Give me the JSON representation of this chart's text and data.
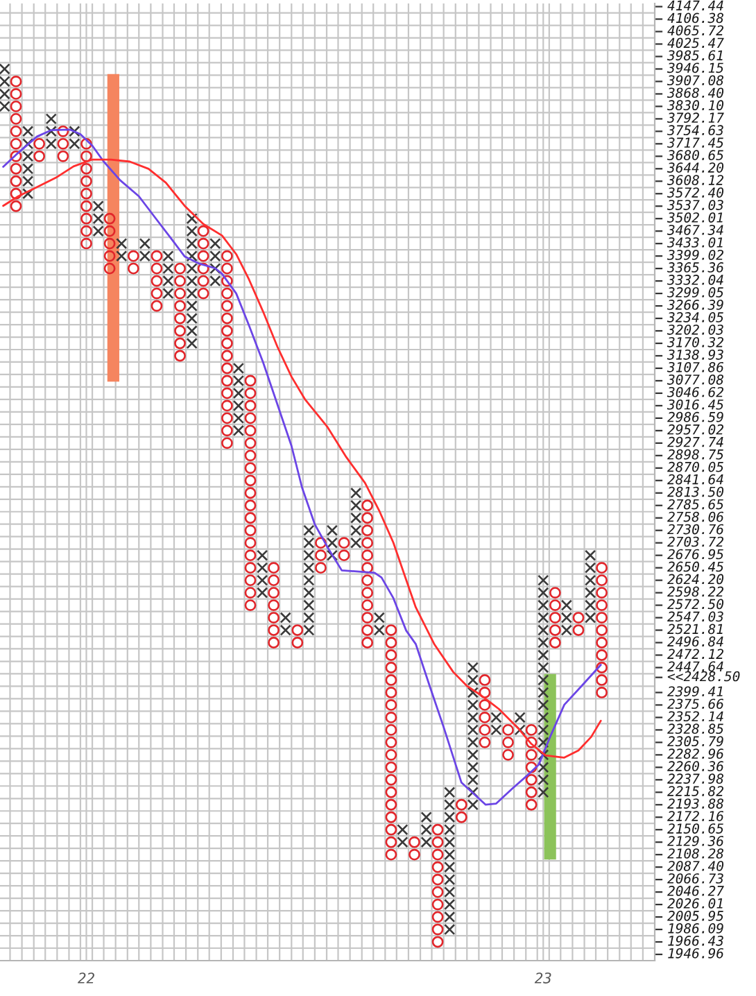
{
  "chart_data": {
    "type": "scatter",
    "log": "y",
    "grid": true,
    "xlim": [
      21.811,
      23.244
    ],
    "xticks": [
      {
        "value": 22,
        "label": "22"
      },
      {
        "value": 23,
        "label": "23"
      },
      {
        "value": 21.833,
        "label": null
      },
      {
        "value": 21.859,
        "label": null
      },
      {
        "value": 21.885,
        "label": null
      },
      {
        "value": 21.91,
        "label": null
      },
      {
        "value": 21.936,
        "label": null
      },
      {
        "value": 21.962,
        "label": null
      },
      {
        "value": 21.987,
        "label": null
      },
      {
        "value": 22.013,
        "label": null
      },
      {
        "value": 22.038,
        "label": null
      },
      {
        "value": 22.064,
        "label": null
      },
      {
        "value": 22.09,
        "label": null
      },
      {
        "value": 22.115,
        "label": null
      },
      {
        "value": 22.141,
        "label": null
      },
      {
        "value": 22.167,
        "label": null
      },
      {
        "value": 22.192,
        "label": null
      },
      {
        "value": 22.218,
        "label": null
      },
      {
        "value": 22.244,
        "label": null
      },
      {
        "value": 22.269,
        "label": null
      },
      {
        "value": 22.295,
        "label": null
      },
      {
        "value": 22.321,
        "label": null
      },
      {
        "value": 22.346,
        "label": null
      },
      {
        "value": 22.372,
        "label": null
      },
      {
        "value": 22.397,
        "label": null
      },
      {
        "value": 22.423,
        "label": null
      },
      {
        "value": 22.449,
        "label": null
      },
      {
        "value": 22.474,
        "label": null
      },
      {
        "value": 22.5,
        "label": null
      },
      {
        "value": 22.526,
        "label": null
      },
      {
        "value": 22.551,
        "label": null
      },
      {
        "value": 22.577,
        "label": null
      },
      {
        "value": 22.603,
        "label": null
      },
      {
        "value": 22.628,
        "label": null
      },
      {
        "value": 22.654,
        "label": null
      },
      {
        "value": 22.679,
        "label": null
      },
      {
        "value": 22.705,
        "label": null
      },
      {
        "value": 22.731,
        "label": null
      },
      {
        "value": 22.756,
        "label": null
      },
      {
        "value": 22.782,
        "label": null
      },
      {
        "value": 22.808,
        "label": null
      },
      {
        "value": 22.833,
        "label": null
      },
      {
        "value": 22.859,
        "label": null
      },
      {
        "value": 22.885,
        "label": null
      },
      {
        "value": 22.91,
        "label": null
      },
      {
        "value": 22.936,
        "label": null
      },
      {
        "value": 22.962,
        "label": null
      },
      {
        "value": 22.987,
        "label": null
      },
      {
        "value": 23.013,
        "label": null
      },
      {
        "value": 23.038,
        "label": null
      },
      {
        "value": 23.064,
        "label": null
      },
      {
        "value": 23.09,
        "label": null
      },
      {
        "value": 23.115,
        "label": null
      },
      {
        "value": 23.141,
        "label": null
      },
      {
        "value": 23.167,
        "label": null
      },
      {
        "value": 23.192,
        "label": null
      },
      {
        "value": 23.218,
        "label": null
      }
    ],
    "ylim": [
      1937.3,
      4157.9
    ],
    "yticks": [
      {
        "value": 4147.44,
        "label": "4147.44"
      },
      {
        "value": 4106.38,
        "label": "4106.38"
      },
      {
        "value": 4065.72,
        "label": "4065.72"
      },
      {
        "value": 4025.47,
        "label": "4025.47"
      },
      {
        "value": 3985.61,
        "label": "3985.61"
      },
      {
        "value": 3946.15,
        "label": "3946.15"
      },
      {
        "value": 3907.08,
        "label": "3907.08"
      },
      {
        "value": 3868.4,
        "label": "3868.40"
      },
      {
        "value": 3830.1,
        "label": "3830.10"
      },
      {
        "value": 3792.17,
        "label": "3792.17"
      },
      {
        "value": 3754.63,
        "label": "3754.63"
      },
      {
        "value": 3717.45,
        "label": "3717.45"
      },
      {
        "value": 3680.65,
        "label": "3680.65"
      },
      {
        "value": 3644.2,
        "label": "3644.20"
      },
      {
        "value": 3608.12,
        "label": "3608.12"
      },
      {
        "value": 3572.4,
        "label": "3572.40"
      },
      {
        "value": 3537.03,
        "label": "3537.03"
      },
      {
        "value": 3502.01,
        "label": "3502.01"
      },
      {
        "value": 3467.34,
        "label": "3467.34"
      },
      {
        "value": 3433.01,
        "label": "3433.01"
      },
      {
        "value": 3399.02,
        "label": "3399.02"
      },
      {
        "value": 3365.36,
        "label": "3365.36"
      },
      {
        "value": 3332.04,
        "label": "3332.04"
      },
      {
        "value": 3299.05,
        "label": "3299.05"
      },
      {
        "value": 3266.39,
        "label": "3266.39"
      },
      {
        "value": 3234.05,
        "label": "3234.05"
      },
      {
        "value": 3202.03,
        "label": "3202.03"
      },
      {
        "value": 3170.32,
        "label": "3170.32"
      },
      {
        "value": 3138.93,
        "label": "3138.93"
      },
      {
        "value": 3107.86,
        "label": "3107.86"
      },
      {
        "value": 3077.08,
        "label": "3077.08"
      },
      {
        "value": 3046.62,
        "label": "3046.62"
      },
      {
        "value": 3016.45,
        "label": "3016.45"
      },
      {
        "value": 2986.59,
        "label": "2986.59"
      },
      {
        "value": 2957.02,
        "label": "2957.02"
      },
      {
        "value": 2927.74,
        "label": "2927.74"
      },
      {
        "value": 2898.75,
        "label": "2898.75"
      },
      {
        "value": 2870.05,
        "label": "2870.05"
      },
      {
        "value": 2841.64,
        "label": "2841.64"
      },
      {
        "value": 2813.5,
        "label": "2813.50"
      },
      {
        "value": 2785.65,
        "label": "2785.65"
      },
      {
        "value": 2758.06,
        "label": "2758.06"
      },
      {
        "value": 2730.76,
        "label": "2730.76"
      },
      {
        "value": 2703.72,
        "label": "2703.72"
      },
      {
        "value": 2676.95,
        "label": "2676.95"
      },
      {
        "value": 2650.45,
        "label": "2650.45"
      },
      {
        "value": 2624.2,
        "label": "2624.20"
      },
      {
        "value": 2598.22,
        "label": "2598.22"
      },
      {
        "value": 2572.5,
        "label": "2572.50"
      },
      {
        "value": 2547.03,
        "label": "2547.03"
      },
      {
        "value": 2521.81,
        "label": "2521.81"
      },
      {
        "value": 2496.84,
        "label": "2496.84"
      },
      {
        "value": 2472.12,
        "label": "2472.12"
      },
      {
        "value": 2447.64,
        "label": "2447.64"
      },
      {
        "value": 2428.5,
        "label": "<<2428.50"
      },
      {
        "value": 2399.41,
        "label": "2399.41"
      },
      {
        "value": 2375.66,
        "label": "2375.66"
      },
      {
        "value": 2352.14,
        "label": "2352.14"
      },
      {
        "value": 2328.85,
        "label": "2328.85"
      },
      {
        "value": 2305.79,
        "label": "2305.79"
      },
      {
        "value": 2282.96,
        "label": "2282.96"
      },
      {
        "value": 2260.36,
        "label": "2260.36"
      },
      {
        "value": 2237.98,
        "label": "2237.98"
      },
      {
        "value": 2215.82,
        "label": "2215.82"
      },
      {
        "value": 2193.88,
        "label": "2193.88"
      },
      {
        "value": 2172.16,
        "label": "2172.16"
      },
      {
        "value": 2150.65,
        "label": "2150.65"
      },
      {
        "value": 2129.36,
        "label": "2129.36"
      },
      {
        "value": 2108.28,
        "label": "2108.28"
      },
      {
        "value": 2087.4,
        "label": "2087.40"
      },
      {
        "value": 2066.73,
        "label": "2066.73"
      },
      {
        "value": 2046.27,
        "label": "2046.27"
      },
      {
        "value": 2026.01,
        "label": "2026.01"
      },
      {
        "value": 2005.95,
        "label": "2005.95"
      },
      {
        "value": 1986.09,
        "label": "1986.09"
      },
      {
        "value": 1966.43,
        "label": "1966.43"
      },
      {
        "value": 1946.96,
        "label": "1946.96"
      },
      {
        "value": 4126.9,
        "label": null
      },
      {
        "value": 4086.0,
        "label": null
      },
      {
        "value": 4045.5,
        "label": null
      },
      {
        "value": 4005.5,
        "label": null
      },
      {
        "value": 3965.8,
        "label": null
      },
      {
        "value": 3926.6,
        "label": null
      },
      {
        "value": 3887.7,
        "label": null
      },
      {
        "value": 3849.2,
        "label": null
      },
      {
        "value": 3811.1,
        "label": null
      },
      {
        "value": 3773.4,
        "label": null
      },
      {
        "value": 3736.0,
        "label": null
      },
      {
        "value": 3699.0,
        "label": null
      },
      {
        "value": 3662.4,
        "label": null
      },
      {
        "value": 3626.1,
        "label": null
      },
      {
        "value": 3590.2,
        "label": null
      },
      {
        "value": 3554.7,
        "label": null
      },
      {
        "value": 3519.5,
        "label": null
      },
      {
        "value": 3484.6,
        "label": null
      },
      {
        "value": 3450.1,
        "label": null
      },
      {
        "value": 3416.0,
        "label": null
      },
      {
        "value": 3382.1,
        "label": null
      },
      {
        "value": 3348.7,
        "label": null
      },
      {
        "value": 3315.5,
        "label": null
      },
      {
        "value": 3282.7,
        "label": null
      },
      {
        "value": 3250.2,
        "label": null
      },
      {
        "value": 3218.0,
        "label": null
      },
      {
        "value": 3186.1,
        "label": null
      },
      {
        "value": 3154.6,
        "label": null
      },
      {
        "value": 3123.4,
        "label": null
      },
      {
        "value": 3092.4,
        "label": null
      },
      {
        "value": 3061.8,
        "label": null
      },
      {
        "value": 3031.5,
        "label": null
      },
      {
        "value": 3001.5,
        "label": null
      },
      {
        "value": 2971.8,
        "label": null
      },
      {
        "value": 2942.3,
        "label": null
      },
      {
        "value": 2913.2,
        "label": null
      },
      {
        "value": 2884.4,
        "label": null
      },
      {
        "value": 2855.8,
        "label": null
      },
      {
        "value": 2827.5,
        "label": null
      },
      {
        "value": 2799.5,
        "label": null
      },
      {
        "value": 2771.8,
        "label": null
      },
      {
        "value": 2744.4,
        "label": null
      },
      {
        "value": 2717.2,
        "label": null
      },
      {
        "value": 2690.3,
        "label": null
      },
      {
        "value": 2663.7,
        "label": null
      },
      {
        "value": 2637.3,
        "label": null
      },
      {
        "value": 2611.2,
        "label": null
      },
      {
        "value": 2585.3,
        "label": null
      },
      {
        "value": 2559.7,
        "label": null
      },
      {
        "value": 2534.4,
        "label": null
      },
      {
        "value": 2509.3,
        "label": null
      },
      {
        "value": 2484.5,
        "label": null
      },
      {
        "value": 2459.8,
        "label": null
      },
      {
        "value": 2435.5,
        "label": null
      },
      {
        "value": 2411.4,
        "label": null
      },
      {
        "value": 2387.5,
        "label": null
      },
      {
        "value": 2363.9,
        "label": null
      },
      {
        "value": 2340.5,
        "label": null
      },
      {
        "value": 2317.3,
        "label": null
      },
      {
        "value": 2294.3,
        "label": null
      },
      {
        "value": 2271.6,
        "label": null
      },
      {
        "value": 2249.1,
        "label": null
      },
      {
        "value": 2226.9,
        "label": null
      },
      {
        "value": 2204.8,
        "label": null
      },
      {
        "value": 2183.0,
        "label": null
      },
      {
        "value": 2161.4,
        "label": null
      },
      {
        "value": 2140.0,
        "label": null
      },
      {
        "value": 2118.8,
        "label": null
      },
      {
        "value": 2097.8,
        "label": null
      },
      {
        "value": 2077.0,
        "label": null
      },
      {
        "value": 2056.5,
        "label": null
      },
      {
        "value": 2036.1,
        "label": null
      },
      {
        "value": 2016.0,
        "label": null
      },
      {
        "value": 1996.0,
        "label": null
      },
      {
        "value": 1976.2,
        "label": null
      },
      {
        "value": 1956.7,
        "label": null
      }
    ],
    "series": [
      {
        "type": "bar",
        "colors": [
          "#f5855f",
          "#8cc35a"
        ],
        "x": [
          22.059,
          23.015
        ],
        "values": [
          855,
          335
        ],
        "base": [
          3075,
          2100
        ]
      },
      {
        "marker": "cross",
        "color": "#3a3a3a",
        "x": [
          21.821,
          21.821,
          21.821,
          21.821,
          21.872,
          21.872,
          21.872,
          21.872,
          21.872,
          21.872,
          21.923,
          21.923,
          21.923,
          21.974,
          21.974,
          22.026,
          22.026,
          22.026,
          22.077,
          22.077,
          22.128,
          22.128,
          22.179,
          22.179,
          22.179,
          22.179,
          22.231,
          22.231,
          22.231,
          22.231,
          22.231,
          22.231,
          22.231,
          22.231,
          22.231,
          22.231,
          22.231,
          22.282,
          22.282,
          22.282,
          22.282,
          22.333,
          22.333,
          22.333,
          22.333,
          22.333,
          22.333,
          22.385,
          22.385,
          22.385,
          22.385,
          22.436,
          22.436,
          22.487,
          22.487,
          22.487,
          22.487,
          22.487,
          22.487,
          22.487,
          22.487,
          22.487,
          22.538,
          22.538,
          22.538,
          22.59,
          22.59,
          22.59,
          22.59,
          22.59,
          22.641,
          22.641,
          22.692,
          22.692,
          22.744,
          22.744,
          22.744,
          22.795,
          22.795,
          22.795,
          22.795,
          22.795,
          22.795,
          22.795,
          22.795,
          22.795,
          22.795,
          22.795,
          22.795,
          22.846,
          22.846,
          22.846,
          22.846,
          22.846,
          22.846,
          22.846,
          22.846,
          22.846,
          22.846,
          22.846,
          22.846,
          22.897,
          22.897,
          22.949,
          22.949,
          23.0,
          23.0,
          23.0,
          23.0,
          23.0,
          23.0,
          23.0,
          23.0,
          23.0,
          23.0,
          23.0,
          23.0,
          23.0,
          23.0,
          23.0,
          23.0,
          23.0,
          23.0,
          23.051,
          23.051,
          23.051,
          23.103,
          23.103,
          23.103,
          23.103,
          23.103,
          23.103
        ],
        "values": [
          3946.15,
          3907.08,
          3868.4,
          3830.1,
          3754.63,
          3717.45,
          3680.65,
          3644.2,
          3608.12,
          3572.4,
          3792.17,
          3754.63,
          3717.45,
          3754.63,
          3717.45,
          3537.03,
          3502.01,
          3467.34,
          3433.01,
          3399.02,
          3433.01,
          3399.02,
          3399.02,
          3365.36,
          3332.04,
          3299.05,
          3502.01,
          3467.34,
          3433.01,
          3399.02,
          3365.36,
          3332.04,
          3299.05,
          3266.39,
          3234.05,
          3202.03,
          3170.32,
          3433.01,
          3399.02,
          3365.36,
          3332.04,
          3107.86,
          3077.08,
          3046.62,
          3016.45,
          2986.59,
          2957.02,
          2676.95,
          2650.45,
          2624.2,
          2598.22,
          2547.03,
          2521.81,
          2730.76,
          2703.72,
          2676.95,
          2650.45,
          2624.2,
          2598.22,
          2572.5,
          2547.03,
          2521.81,
          2730.76,
          2703.72,
          2676.95,
          2813.5,
          2785.65,
          2758.06,
          2730.76,
          2703.72,
          2547.03,
          2521.81,
          2150.65,
          2129.36,
          2172.16,
          2150.65,
          2129.36,
          2215.82,
          2193.88,
          2172.16,
          2150.65,
          2129.36,
          2108.28,
          2087.4,
          2066.73,
          2046.27,
          2026.01,
          2005.95,
          1986.09,
          2447.64,
          2423.41,
          2399.41,
          2375.66,
          2352.14,
          2328.85,
          2305.79,
          2282.96,
          2260.36,
          2237.98,
          2215.82,
          2193.88,
          2352.14,
          2328.85,
          2352.14,
          2328.85,
          2624.2,
          2598.22,
          2572.5,
          2547.03,
          2521.81,
          2496.84,
          2472.12,
          2447.64,
          2423.41,
          2399.41,
          2375.66,
          2352.14,
          2328.85,
          2305.79,
          2282.96,
          2260.36,
          2237.98,
          2215.82,
          2572.5,
          2547.03,
          2521.81,
          2676.95,
          2650.45,
          2624.2,
          2598.22,
          2572.5,
          2547.03
        ]
      },
      {
        "marker": "circle",
        "color": "#e2262b",
        "x": [
          21.846,
          21.846,
          21.846,
          21.846,
          21.846,
          21.846,
          21.846,
          21.846,
          21.846,
          21.846,
          21.846,
          21.897,
          21.897,
          21.949,
          21.949,
          21.949,
          22.0,
          22.0,
          22.0,
          22.0,
          22.0,
          22.0,
          22.0,
          22.0,
          22.0,
          22.051,
          22.051,
          22.051,
          22.051,
          22.051,
          22.103,
          22.103,
          22.154,
          22.154,
          22.154,
          22.154,
          22.154,
          22.205,
          22.205,
          22.205,
          22.205,
          22.205,
          22.205,
          22.205,
          22.205,
          22.256,
          22.256,
          22.256,
          22.256,
          22.256,
          22.256,
          22.308,
          22.308,
          22.308,
          22.308,
          22.308,
          22.308,
          22.308,
          22.308,
          22.308,
          22.308,
          22.308,
          22.308,
          22.308,
          22.308,
          22.308,
          22.308,
          22.359,
          22.359,
          22.359,
          22.359,
          22.359,
          22.359,
          22.359,
          22.359,
          22.359,
          22.359,
          22.359,
          22.359,
          22.359,
          22.359,
          22.359,
          22.359,
          22.359,
          22.359,
          22.359,
          22.41,
          22.41,
          22.41,
          22.41,
          22.41,
          22.41,
          22.41,
          22.462,
          22.462,
          22.513,
          22.513,
          22.513,
          22.564,
          22.564,
          22.615,
          22.615,
          22.615,
          22.615,
          22.615,
          22.615,
          22.615,
          22.615,
          22.615,
          22.615,
          22.615,
          22.615,
          22.667,
          22.667,
          22.667,
          22.667,
          22.667,
          22.667,
          22.667,
          22.667,
          22.667,
          22.667,
          22.667,
          22.667,
          22.667,
          22.667,
          22.667,
          22.667,
          22.667,
          22.667,
          22.667,
          22.718,
          22.718,
          22.769,
          22.769,
          22.769,
          22.769,
          22.769,
          22.769,
          22.769,
          22.769,
          22.769,
          22.769,
          22.821,
          22.821,
          22.872,
          22.872,
          22.872,
          22.872,
          22.872,
          22.872,
          22.923,
          22.923,
          22.923,
          22.974,
          22.974,
          22.974,
          22.974,
          22.974,
          22.974,
          22.974,
          23.026,
          23.026,
          23.026,
          23.026,
          23.026,
          23.077,
          23.077,
          23.128,
          23.128,
          23.128,
          23.128,
          23.128,
          23.128,
          23.128,
          23.128,
          23.128,
          23.128,
          23.128
        ],
        "values": [
          3907.08,
          3868.4,
          3830.1,
          3792.17,
          3754.63,
          3717.45,
          3680.65,
          3644.2,
          3608.12,
          3572.4,
          3537.03,
          3717.45,
          3680.65,
          3754.63,
          3717.45,
          3680.65,
          3717.45,
          3680.65,
          3644.2,
          3608.12,
          3572.4,
          3537.03,
          3502.01,
          3467.34,
          3433.01,
          3502.01,
          3467.34,
          3433.01,
          3399.02,
          3365.36,
          3399.02,
          3365.36,
          3399.02,
          3365.36,
          3332.04,
          3299.05,
          3266.39,
          3365.36,
          3332.04,
          3299.05,
          3266.39,
          3234.05,
          3202.03,
          3170.32,
          3138.93,
          3467.34,
          3433.01,
          3399.02,
          3365.36,
          3332.04,
          3299.05,
          3399.02,
          3365.36,
          3332.04,
          3299.05,
          3266.39,
          3234.05,
          3202.03,
          3170.32,
          3138.93,
          3107.86,
          3077.08,
          3046.62,
          3016.45,
          2986.59,
          2957.02,
          2927.74,
          3077.08,
          3046.62,
          3016.45,
          2986.59,
          2957.02,
          2927.74,
          2898.75,
          2870.05,
          2841.64,
          2813.5,
          2785.65,
          2758.06,
          2730.76,
          2703.72,
          2676.95,
          2650.45,
          2624.2,
          2598.22,
          2572.5,
          2650.45,
          2624.2,
          2598.22,
          2572.5,
          2547.03,
          2521.81,
          2496.84,
          2521.81,
          2496.84,
          2703.72,
          2676.95,
          2650.45,
          2703.72,
          2676.95,
          2785.65,
          2758.06,
          2730.76,
          2703.72,
          2676.95,
          2650.45,
          2624.2,
          2598.22,
          2572.5,
          2547.03,
          2521.81,
          2496.84,
          2521.81,
          2496.84,
          2472.12,
          2447.64,
          2423.41,
          2399.41,
          2375.66,
          2352.14,
          2328.85,
          2305.79,
          2282.96,
          2260.36,
          2237.98,
          2215.82,
          2193.88,
          2172.16,
          2150.65,
          2129.36,
          2108.28,
          2129.36,
          2108.28,
          2150.65,
          2129.36,
          2108.28,
          2087.4,
          2066.73,
          2046.27,
          2026.01,
          2005.95,
          1986.09,
          1966.43,
          2193.88,
          2172.16,
          2423.41,
          2399.41,
          2375.66,
          2352.14,
          2328.85,
          2305.79,
          2328.85,
          2305.79,
          2282.96,
          2328.85,
          2305.79,
          2282.96,
          2260.36,
          2237.98,
          2215.82,
          2193.88,
          2598.22,
          2572.5,
          2547.03,
          2521.81,
          2496.84,
          2547.03,
          2521.81,
          2650.45,
          2624.2,
          2598.22,
          2572.5,
          2547.03,
          2521.81,
          2496.84,
          2472.12,
          2447.64,
          2423.41,
          2399.41
        ]
      },
      {
        "type": "line",
        "color": "#6b45e6",
        "x": [
          21.818,
          21.846,
          21.892,
          21.923,
          21.964,
          21.987,
          22.013,
          22.038,
          22.074,
          22.115,
          22.154,
          22.185,
          22.215,
          22.246,
          22.282,
          22.297,
          22.328,
          22.356,
          22.387,
          22.418,
          22.449,
          22.472,
          22.5,
          22.528,
          22.559,
          22.631,
          22.646,
          22.672,
          22.7,
          22.721,
          22.751,
          22.782,
          22.821,
          22.874,
          22.897,
          22.933,
          22.964,
          22.99,
          23.015,
          23.046,
          23.085,
          23.126
        ],
        "values": [
          3650,
          3685,
          3739,
          3758,
          3760,
          3746,
          3712,
          3665,
          3611,
          3565,
          3499,
          3448,
          3398,
          3379,
          3366,
          3351,
          3299,
          3216,
          3122,
          3020,
          2921,
          2826,
          2744,
          2694,
          2645,
          2640,
          2630,
          2587,
          2521,
          2494,
          2413,
          2334,
          2233,
          2194,
          2196,
          2223,
          2245,
          2265,
          2316,
          2376,
          2413,
          2453
        ]
      },
      {
        "type": "line",
        "color": "#ff2e2e",
        "x": [
          21.818,
          21.851,
          21.892,
          21.933,
          21.972,
          22.013,
          22.054,
          22.095,
          22.136,
          22.174,
          22.215,
          22.256,
          22.297,
          22.328,
          22.356,
          22.387,
          22.418,
          22.449,
          22.479,
          22.528,
          22.569,
          22.61,
          22.641,
          22.672,
          22.7,
          22.721,
          22.762,
          22.803,
          22.833,
          22.864,
          22.903,
          22.944,
          22.974,
          23.005,
          23.046,
          23.077,
          23.105,
          23.126
        ],
        "values": [
          3538,
          3565,
          3591,
          3618,
          3651,
          3671,
          3671,
          3665,
          3644,
          3604,
          3538,
          3487,
          3455,
          3404,
          3336,
          3251,
          3162,
          3087,
          3031,
          2965,
          2895,
          2836,
          2774,
          2704,
          2625,
          2568,
          2493,
          2439,
          2412,
          2394,
          2368,
          2333,
          2303,
          2282,
          2278,
          2291,
          2316,
          2346
        ]
      }
    ]
  }
}
